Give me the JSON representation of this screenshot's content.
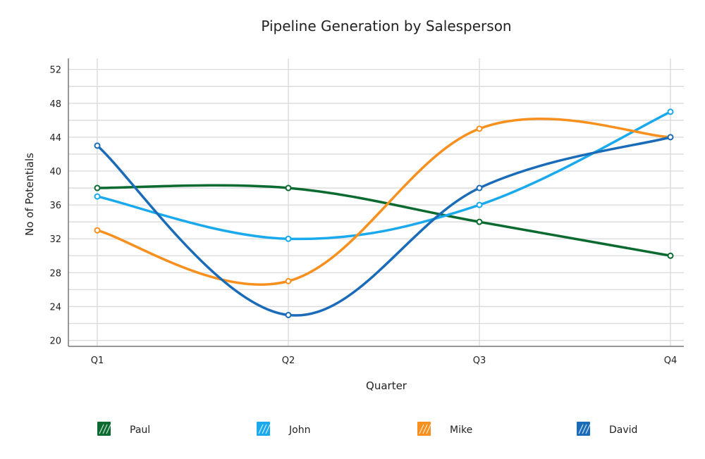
{
  "chart_data": {
    "type": "line",
    "title": "Pipeline Generation by Salesperson",
    "xlabel": "Quarter",
    "ylabel": "No of Potentials",
    "categories": [
      "Q1",
      "Q2",
      "Q3",
      "Q4"
    ],
    "ylim": [
      19.3,
      53.3
    ],
    "yticks": [
      20,
      24,
      28,
      32,
      36,
      40,
      44,
      48,
      52
    ],
    "grid": true,
    "legend": "bottom",
    "series": [
      {
        "name": "Paul",
        "color": "#0b6a2f",
        "values": [
          38,
          38,
          34,
          30
        ]
      },
      {
        "name": "John",
        "color": "#1aa9ec",
        "values": [
          37,
          32,
          36,
          47
        ]
      },
      {
        "name": "Mike",
        "color": "#f7901e",
        "values": [
          33,
          27,
          45,
          44
        ]
      },
      {
        "name": "David",
        "color": "#1b6cb8",
        "values": [
          43,
          23,
          38,
          44
        ]
      }
    ]
  }
}
